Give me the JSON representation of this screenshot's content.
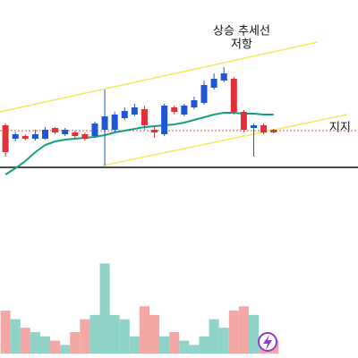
{
  "chart_data": {
    "type": "candlestick",
    "annotations": [
      "상승 추세선",
      "저항",
      "지지"
    ],
    "open": [
      260,
      245,
      248,
      245,
      245,
      257,
      250,
      252,
      250,
      248,
      255,
      255,
      268,
      272,
      278,
      255,
      250,
      280,
      272,
      280,
      285,
      302,
      310,
      312,
      275,
      257,
      260,
      255
    ],
    "high": [
      262,
      252,
      250,
      255,
      258,
      258,
      257,
      254,
      252,
      264,
      300,
      275,
      280,
      284,
      282,
      258,
      284,
      282,
      284,
      292,
      310,
      318,
      325,
      314,
      277,
      262,
      262,
      256
    ],
    "low": [
      225,
      242,
      243,
      243,
      244,
      250,
      248,
      246,
      243,
      246,
      215,
      252,
      266,
      270,
      255,
      246,
      248,
      272,
      270,
      278,
      283,
      300,
      308,
      272,
      252,
      225,
      250,
      251
    ],
    "close": [
      230,
      250,
      245,
      250,
      255,
      252,
      255,
      248,
      245,
      262,
      270,
      272,
      276,
      280,
      260,
      252,
      282,
      275,
      282,
      288,
      305,
      312,
      318,
      275,
      255,
      260,
      252,
      252
    ],
    "up_color": "#1e56d6",
    "down_color": "#e0303a",
    "volume": [
      50,
      40,
      30,
      25,
      20,
      15,
      10,
      25,
      40,
      45,
      105,
      45,
      40,
      20,
      55,
      45,
      20,
      25,
      15,
      10,
      20,
      40,
      30,
      50,
      55,
      45,
      20,
      15
    ],
    "volume_up_color": "#8fd3c9",
    "volume_down_color": "#f3a8a6",
    "ma": [
      205,
      212,
      220,
      230,
      238,
      242,
      244,
      245,
      246,
      247,
      249,
      252,
      254,
      256,
      258,
      259,
      260,
      261,
      263,
      266,
      269,
      272,
      274,
      274,
      273,
      273,
      272,
      272
    ],
    "ma_color": "#14a080",
    "trendlines": [
      {
        "x": [
          -0.55,
          31.45
        ],
        "y": [
          275,
          353
        ]
      },
      {
        "x": [
          9.8,
          34.4
        ],
        "y": [
          215,
          272
        ]
      }
    ],
    "trendline_color": "#f2ea5a",
    "levels": [
      {
        "y": 213,
        "color": "#111111",
        "style": "solid"
      },
      {
        "y": 254,
        "color": "#e05050",
        "style": "dotted"
      }
    ],
    "xlim": [
      -0.55,
      35.5
    ],
    "ylim": [
      200,
      400
    ],
    "volume_ylim": [
      0,
      120
    ]
  }
}
